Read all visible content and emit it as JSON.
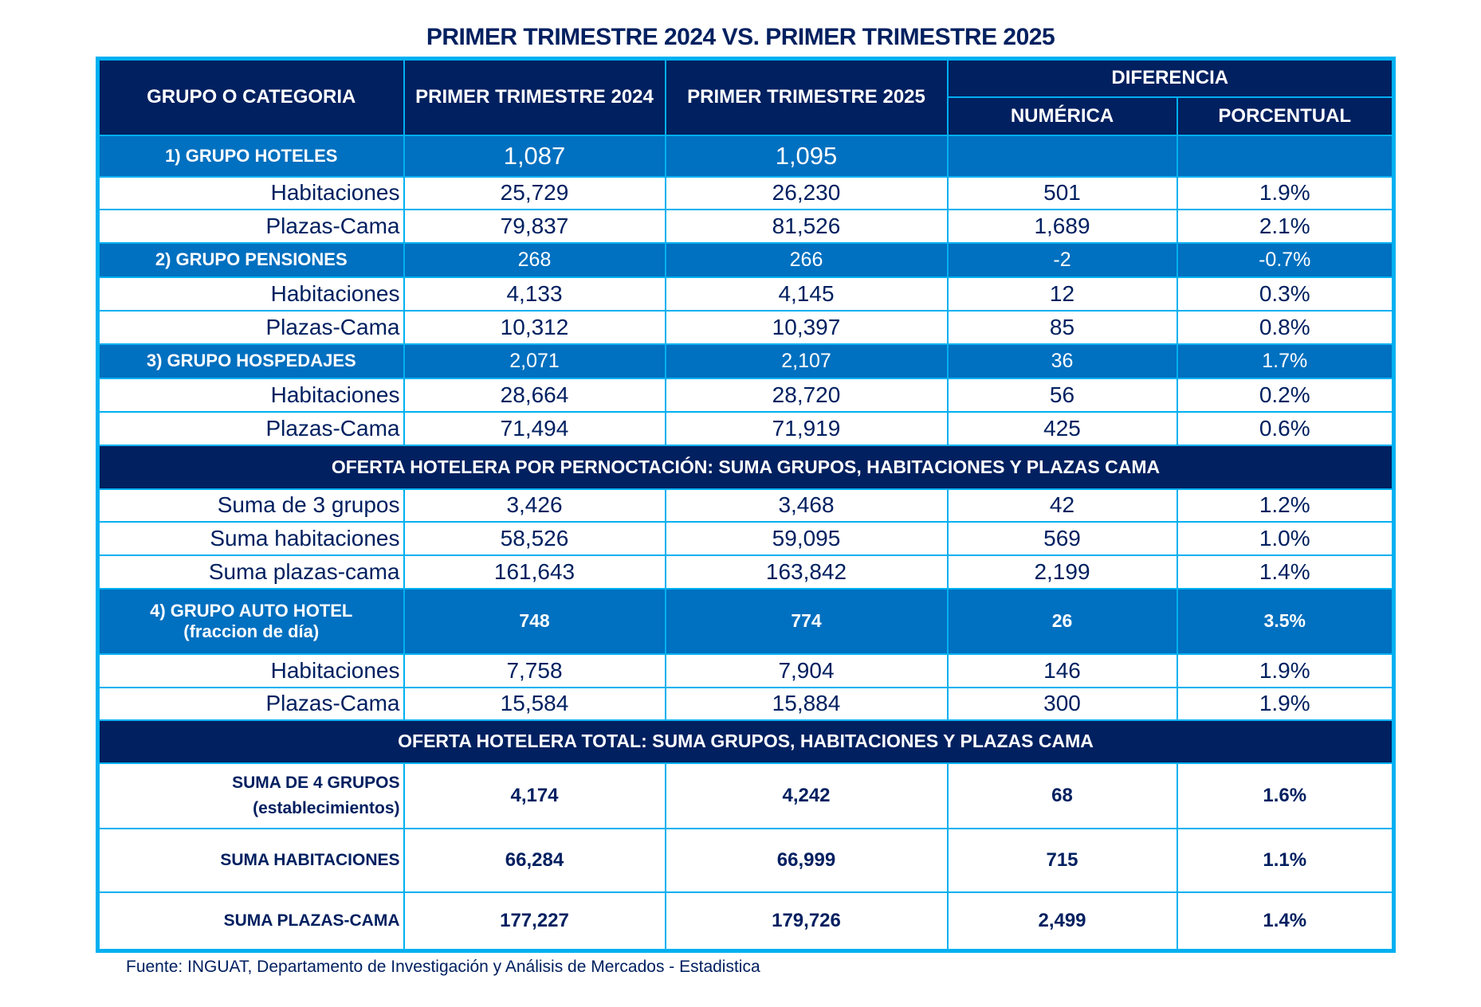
{
  "title": "PRIMER TRIMESTRE 2024 VS. PRIMER TRIMESTRE 2025",
  "header": {
    "category": "GRUPO O CATEGORIA",
    "q2024": "PRIMER TRIMESTRE 2024",
    "q2025": "PRIMER  TRIMESTRE 2025",
    "difference": "DIFERENCIA",
    "numeric": "NUMÉRICA",
    "percent": "PORCENTUAL"
  },
  "rows": [
    {
      "type": "group g1",
      "label": "1) GRUPO HOTELES",
      "q2024": "1,087",
      "q2025": "1,095",
      "num": "",
      "pct": ""
    },
    {
      "type": "detail",
      "label": "Habitaciones",
      "q2024": "25,729",
      "q2025": "26,230",
      "num": "501",
      "pct": "1.9%"
    },
    {
      "type": "detail",
      "label": "Plazas-Cama",
      "q2024": "79,837",
      "q2025": "81,526",
      "num": "1,689",
      "pct": "2.1%"
    },
    {
      "type": "group",
      "label": "2) GRUPO PENSIONES",
      "q2024": "268",
      "q2025": "266",
      "num": "-2",
      "pct": "-0.7%"
    },
    {
      "type": "detail",
      "label": "Habitaciones",
      "q2024": "4,133",
      "q2025": "4,145",
      "num": "12",
      "pct": "0.3%"
    },
    {
      "type": "detail",
      "label": "Plazas-Cama",
      "q2024": "10,312",
      "q2025": "10,397",
      "num": "85",
      "pct": "0.8%"
    },
    {
      "type": "group",
      "label": "3) GRUPO HOSPEDAJES",
      "q2024": "2,071",
      "q2025": "2,107",
      "num": "36",
      "pct": "1.7%"
    },
    {
      "type": "detail",
      "label": "Habitaciones",
      "q2024": "28,664",
      "q2025": "28,720",
      "num": "56",
      "pct": "0.2%"
    },
    {
      "type": "detail",
      "label": "Plazas-Cama",
      "q2024": "71,494",
      "q2025": "71,919",
      "num": "425",
      "pct": "0.6%"
    },
    {
      "type": "section",
      "label": "OFERTA HOTELERA POR  PERNOCTACIÓN: SUMA GRUPOS, HABITACIONES Y PLAZAS CAMA"
    },
    {
      "type": "detail",
      "label": "Suma de 3 grupos",
      "q2024": "3,426",
      "q2025": "3,468",
      "num": "42",
      "pct": "1.2%"
    },
    {
      "type": "detail",
      "label": "Suma habitaciones",
      "q2024": "58,526",
      "q2025": "59,095",
      "num": "569",
      "pct": "1.0%"
    },
    {
      "type": "detail",
      "label": "Suma plazas-cama",
      "q2024": "161,643",
      "q2025": "163,842",
      "num": "2,199",
      "pct": "1.4%"
    },
    {
      "type": "group g4",
      "label": "4) GRUPO  AUTO HOTEL",
      "label2": "(fraccion de día)",
      "q2024": "748",
      "q2025": "774",
      "num": "26",
      "pct": "3.5%"
    },
    {
      "type": "detail",
      "label": "Habitaciones",
      "q2024": "7,758",
      "q2025": "7,904",
      "num": "146",
      "pct": "1.9%"
    },
    {
      "type": "detail",
      "label": "Plazas-Cama",
      "q2024": "15,584",
      "q2025": "15,884",
      "num": "300",
      "pct": "1.9%"
    },
    {
      "type": "section",
      "label": "OFERTA HOTELERA TOTAL: SUMA GRUPOS, HABITACIONES Y PLAZAS CAMA"
    },
    {
      "type": "total",
      "label": "SUMA  DE 4 GRUPOS",
      "label2": "(establecimientos)",
      "q2024": "4,174",
      "q2025": "4,242",
      "num": "68",
      "pct": "1.6%"
    },
    {
      "type": "total",
      "label": "SUMA HABITACIONES",
      "q2024": "66,284",
      "q2025": "66,999",
      "num": "715",
      "pct": "1.1%"
    },
    {
      "type": "total",
      "label": "SUMA PLAZAS-CAMA",
      "q2024": "177,227",
      "q2025": "179,726",
      "num": "2,499",
      "pct": "1.4%"
    }
  ],
  "source": "Fuente: INGUAT, Departamento de Investigación y Análisis de Mercados - Estadistica",
  "colors": {
    "header": "#002060",
    "group": "#0070c0",
    "border": "#00b0f0",
    "text": "#002060"
  }
}
